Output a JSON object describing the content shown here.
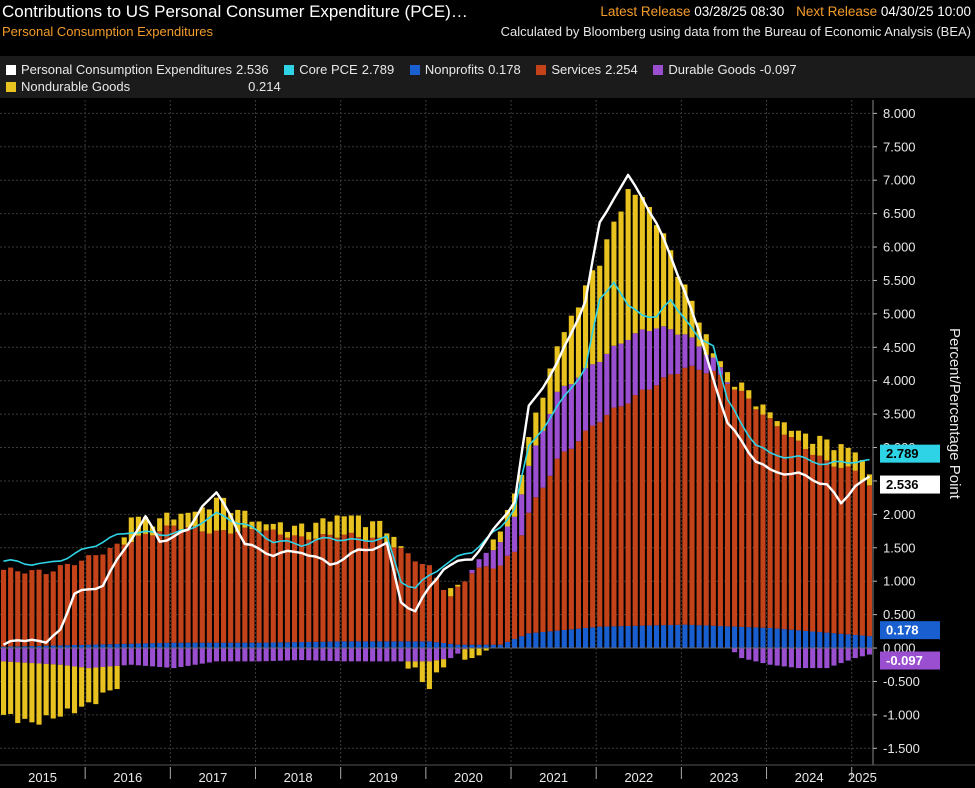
{
  "header": {
    "title": "Contributions to US Personal Consumer Expenditure (PCE)…",
    "subtitle": "Personal Consumption Expenditures",
    "latest_release_label": "Latest Release",
    "latest_release_value": "03/28/25 08:30",
    "next_release_label": "Next Release",
    "next_release_value": "04/30/25 10:00",
    "source": "Calculated by Bloomberg using data from the Bureau of Economic Analysis (BEA)"
  },
  "legend": [
    {
      "name": "Personal Consumption Expenditures",
      "value": "2.536",
      "color": "#ffffff"
    },
    {
      "name": "Core PCE",
      "value": "2.789",
      "color": "#2fd3e6"
    },
    {
      "name": "Nonprofits",
      "value": "0.178",
      "color": "#1a5fd0"
    },
    {
      "name": "Services",
      "value": "2.254",
      "color": "#c4421a"
    },
    {
      "name": "Durable Goods",
      "value": "-0.097",
      "color": "#9a4fd0"
    },
    {
      "name": "Nondurable Goods",
      "value": "0.214",
      "color": "#e8c21f"
    }
  ],
  "colors": {
    "background": "#000000",
    "grid": "#3a3a3a",
    "services": "#c4421a",
    "nonprofits": "#1a5fd0",
    "durable": "#9a4fd0",
    "nondurable": "#e8c21f",
    "pce": "#ffffff",
    "core": "#2fd3e6"
  },
  "chart_data": {
    "type": "bar",
    "ylabel": "Percent/Percentage Point",
    "ylim": [
      -1.75,
      8.2
    ],
    "yticks": [
      "8.000",
      "7.500",
      "7.000",
      "6.500",
      "6.000",
      "5.500",
      "5.000",
      "4.500",
      "4.000",
      "3.500",
      "3.000",
      "2.500",
      "2.000",
      "1.500",
      "1.000",
      "0.500",
      "0.000",
      "-0.500",
      "-1.000",
      "-1.500"
    ],
    "x_years": [
      "2015",
      "2016",
      "2017",
      "2018",
      "2019",
      "2020",
      "2021",
      "2022",
      "2023",
      "2024",
      "2025"
    ],
    "month_index_range": [
      0,
      122
    ],
    "anchors": {
      "services": [
        [
          0,
          1.15
        ],
        [
          6,
          1.1
        ],
        [
          12,
          1.3
        ],
        [
          18,
          1.55
        ],
        [
          24,
          1.75
        ],
        [
          30,
          1.65
        ],
        [
          36,
          1.7
        ],
        [
          42,
          1.55
        ],
        [
          48,
          1.6
        ],
        [
          54,
          1.5
        ],
        [
          60,
          1.1
        ],
        [
          63,
          0.7
        ],
        [
          66,
          1.1
        ],
        [
          70,
          1.2
        ],
        [
          72,
          1.3
        ],
        [
          74,
          1.8
        ],
        [
          78,
          2.55
        ],
        [
          84,
          3.1
        ],
        [
          90,
          3.5
        ],
        [
          96,
          3.85
        ],
        [
          100,
          3.8
        ],
        [
          104,
          3.5
        ],
        [
          108,
          3.1
        ],
        [
          112,
          2.8
        ],
        [
          116,
          2.55
        ],
        [
          120,
          2.45
        ],
        [
          122,
          2.254
        ]
      ],
      "nonprofits": [
        [
          0,
          0.02
        ],
        [
          12,
          0.05
        ],
        [
          24,
          0.08
        ],
        [
          36,
          0.08
        ],
        [
          48,
          0.1
        ],
        [
          60,
          0.1
        ],
        [
          64,
          0.05
        ],
        [
          70,
          0.05
        ],
        [
          74,
          0.22
        ],
        [
          84,
          0.32
        ],
        [
          96,
          0.35
        ],
        [
          108,
          0.3
        ],
        [
          122,
          0.178
        ]
      ],
      "durable": [
        [
          0,
          -0.2
        ],
        [
          8,
          -0.25
        ],
        [
          12,
          -0.3
        ],
        [
          18,
          -0.25
        ],
        [
          24,
          -0.3
        ],
        [
          30,
          -0.2
        ],
        [
          36,
          -0.2
        ],
        [
          42,
          -0.18
        ],
        [
          48,
          -0.2
        ],
        [
          54,
          -0.2
        ],
        [
          60,
          -0.2
        ],
        [
          63,
          -0.15
        ],
        [
          66,
          0.05
        ],
        [
          70,
          0.35
        ],
        [
          74,
          0.7
        ],
        [
          78,
          1.0
        ],
        [
          84,
          0.9
        ],
        [
          88,
          0.95
        ],
        [
          92,
          0.85
        ],
        [
          96,
          0.5
        ],
        [
          100,
          0.2
        ],
        [
          104,
          -0.15
        ],
        [
          108,
          -0.25
        ],
        [
          112,
          -0.3
        ],
        [
          116,
          -0.3
        ],
        [
          120,
          -0.15
        ],
        [
          122,
          -0.097
        ]
      ],
      "nondurable": [
        [
          0,
          -0.8
        ],
        [
          4,
          -0.9
        ],
        [
          8,
          -0.75
        ],
        [
          12,
          -0.55
        ],
        [
          16,
          -0.3
        ],
        [
          18,
          0.4
        ],
        [
          20,
          0.2
        ],
        [
          24,
          0.15
        ],
        [
          28,
          0.3
        ],
        [
          30,
          0.5
        ],
        [
          33,
          0.3
        ],
        [
          36,
          0.1
        ],
        [
          42,
          0.15
        ],
        [
          48,
          0.3
        ],
        [
          54,
          0.2
        ],
        [
          58,
          -0.15
        ],
        [
          60,
          -0.4
        ],
        [
          63,
          0.1
        ],
        [
          66,
          -0.2
        ],
        [
          70,
          0.2
        ],
        [
          74,
          0.4
        ],
        [
          78,
          0.7
        ],
        [
          84,
          1.5
        ],
        [
          88,
          2.2
        ],
        [
          90,
          2.0
        ],
        [
          92,
          1.6
        ],
        [
          96,
          0.7
        ],
        [
          100,
          0.1
        ],
        [
          104,
          0.1
        ],
        [
          108,
          0.1
        ],
        [
          112,
          0.15
        ],
        [
          116,
          0.3
        ],
        [
          120,
          0.3
        ],
        [
          122,
          0.214
        ]
      ],
      "pce_line": [
        [
          0,
          0.05
        ],
        [
          4,
          0.15
        ],
        [
          6,
          0.05
        ],
        [
          8,
          0.3
        ],
        [
          10,
          0.8
        ],
        [
          14,
          0.95
        ],
        [
          18,
          1.65
        ],
        [
          20,
          1.95
        ],
        [
          22,
          1.6
        ],
        [
          26,
          1.75
        ],
        [
          28,
          2.15
        ],
        [
          30,
          2.3
        ],
        [
          32,
          2.0
        ],
        [
          34,
          1.55
        ],
        [
          38,
          1.4
        ],
        [
          42,
          1.45
        ],
        [
          46,
          1.25
        ],
        [
          50,
          1.45
        ],
        [
          54,
          1.55
        ],
        [
          56,
          0.7
        ],
        [
          58,
          0.55
        ],
        [
          60,
          0.9
        ],
        [
          62,
          1.2
        ],
        [
          66,
          1.35
        ],
        [
          68,
          1.6
        ],
        [
          70,
          1.9
        ],
        [
          72,
          2.2
        ],
        [
          74,
          3.6
        ],
        [
          78,
          4.25
        ],
        [
          82,
          5.2
        ],
        [
          84,
          6.35
        ],
        [
          86,
          6.75
        ],
        [
          88,
          7.05
        ],
        [
          90,
          6.75
        ],
        [
          92,
          6.35
        ],
        [
          94,
          5.85
        ],
        [
          96,
          5.35
        ],
        [
          98,
          4.7
        ],
        [
          100,
          4.05
        ],
        [
          102,
          3.35
        ],
        [
          104,
          3.1
        ],
        [
          106,
          2.8
        ],
        [
          108,
          2.65
        ],
        [
          112,
          2.6
        ],
        [
          116,
          2.45
        ],
        [
          118,
          2.15
        ],
        [
          120,
          2.45
        ],
        [
          122,
          2.536
        ]
      ],
      "core_line": [
        [
          0,
          1.3
        ],
        [
          6,
          1.25
        ],
        [
          10,
          1.4
        ],
        [
          14,
          1.6
        ],
        [
          18,
          1.75
        ],
        [
          22,
          1.7
        ],
        [
          26,
          1.75
        ],
        [
          28,
          1.9
        ],
        [
          30,
          2.0
        ],
        [
          34,
          1.85
        ],
        [
          38,
          1.6
        ],
        [
          42,
          1.55
        ],
        [
          46,
          1.65
        ],
        [
          50,
          1.6
        ],
        [
          54,
          1.65
        ],
        [
          56,
          1.0
        ],
        [
          58,
          0.9
        ],
        [
          62,
          1.25
        ],
        [
          66,
          1.45
        ],
        [
          70,
          1.8
        ],
        [
          72,
          2.1
        ],
        [
          74,
          3.0
        ],
        [
          78,
          3.6
        ],
        [
          82,
          4.2
        ],
        [
          84,
          5.2
        ],
        [
          86,
          5.5
        ],
        [
          88,
          5.1
        ],
        [
          90,
          5.0
        ],
        [
          92,
          4.95
        ],
        [
          94,
          5.2
        ],
        [
          96,
          4.95
        ],
        [
          98,
          4.6
        ],
        [
          100,
          4.55
        ],
        [
          102,
          3.7
        ],
        [
          104,
          3.35
        ],
        [
          106,
          3.05
        ],
        [
          108,
          2.9
        ],
        [
          112,
          2.85
        ],
        [
          116,
          2.75
        ],
        [
          120,
          2.8
        ],
        [
          122,
          2.789
        ]
      ]
    },
    "value_tags": [
      {
        "label": "2.789",
        "value": 2.789,
        "series": "core"
      },
      {
        "label": "2.536",
        "value": 2.536,
        "series": "pce"
      },
      {
        "label": "0.178",
        "value": 0.178,
        "series": "nonprofits"
      },
      {
        "label": "-0.097",
        "value": -0.097,
        "series": "durable"
      }
    ]
  }
}
